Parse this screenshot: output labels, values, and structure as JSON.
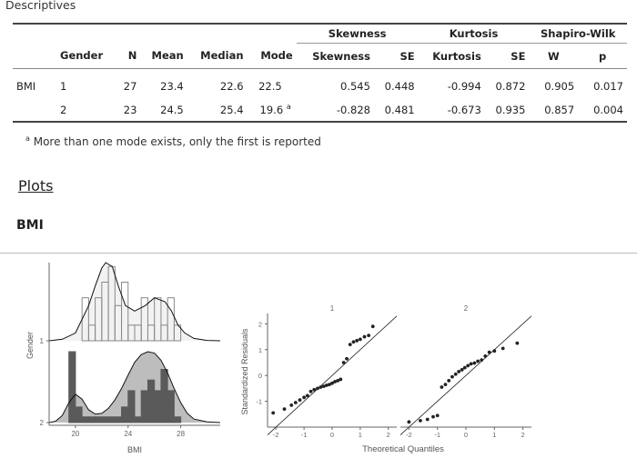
{
  "section_title": "Descriptives",
  "table": {
    "groups": [
      {
        "label": "Skewness"
      },
      {
        "label": "Kurtosis"
      },
      {
        "label": "Shapiro-Wilk"
      }
    ],
    "columns": [
      "Gender",
      "N",
      "Mean",
      "Median",
      "Mode",
      "Skewness",
      "SE",
      "Kurtosis",
      "SE",
      "W",
      "p"
    ],
    "variable": "BMI",
    "rows": [
      {
        "gender": "1",
        "n": "27",
        "mean": "23.4",
        "median": "22.6",
        "mode": "22.5",
        "skew": "0.545",
        "skew_se": "0.448",
        "kurt": "-0.994",
        "kurt_se": "0.872",
        "w": "0.905",
        "p": "0.017"
      },
      {
        "gender": "2",
        "n": "23",
        "mean": "24.5",
        "median": "25.4",
        "mode": "19.6",
        "mode_marker": "a",
        "skew": "-0.828",
        "skew_se": "0.481",
        "kurt": "-0.673",
        "kurt_se": "0.935",
        "w": "0.857",
        "p": "0.004"
      }
    ]
  },
  "footnote": {
    "marker": "a",
    "text": "More than one mode exists, only the first is reported"
  },
  "plots_title": "Plots",
  "variable_title": "BMI",
  "colors": {
    "dens_1": "#f2f2f2",
    "dens_2": "#bdbdbd",
    "hist_2": "#5a5a5a",
    "points": "#222222"
  },
  "chart_data": [
    {
      "type": "area",
      "xlabel": "BMI",
      "ylabel": "Gender",
      "xticks": [
        "20",
        "24",
        "28"
      ],
      "yticks": [
        "1",
        "2"
      ],
      "xlim": [
        18,
        31
      ],
      "series": [
        {
          "name": "1",
          "density_x": [
            19,
            20,
            21,
            21.5,
            22,
            22.3,
            22.8,
            23.3,
            23.8,
            24.5,
            25.3,
            26,
            26.8,
            27.3,
            27.8,
            28.3,
            29,
            30
          ],
          "density_y": [
            0.02,
            0.1,
            0.45,
            0.7,
            0.93,
            1.0,
            0.95,
            0.68,
            0.45,
            0.38,
            0.45,
            0.55,
            0.5,
            0.38,
            0.2,
            0.1,
            0.03,
            0.005
          ],
          "hist_bins": [
            20.5,
            21,
            21.5,
            22,
            22.5,
            23,
            23.5,
            24,
            24.5,
            25,
            25.5,
            26,
            26.5,
            27,
            27.5,
            28
          ],
          "hist_counts": [
            0.55,
            0.2,
            0.55,
            0.75,
            0.95,
            0.45,
            0.75,
            0.2,
            0.2,
            0.55,
            0.2,
            0.55,
            0.2,
            0.55,
            0.2
          ]
        },
        {
          "name": "2",
          "density_x": [
            18.5,
            19,
            19.5,
            20,
            20.5,
            21,
            21.5,
            22,
            22.5,
            23,
            23.5,
            24,
            24.5,
            25,
            25.5,
            26,
            26.5,
            27,
            27.5,
            28,
            28.5,
            29,
            30
          ],
          "density_y": [
            0.02,
            0.1,
            0.28,
            0.4,
            0.33,
            0.18,
            0.12,
            0.13,
            0.2,
            0.32,
            0.48,
            0.67,
            0.85,
            0.96,
            1.0,
            0.98,
            0.88,
            0.7,
            0.48,
            0.28,
            0.13,
            0.05,
            0.01
          ],
          "hist_bins": [
            19.5,
            20,
            20.5,
            21,
            21.5,
            22,
            22.5,
            23,
            23.5,
            24,
            24.5,
            25,
            25.5,
            26,
            26.5,
            27,
            27.5,
            28
          ],
          "hist_counts": [
            1.0,
            0.22,
            0.08,
            0.08,
            0.08,
            0.08,
            0.08,
            0.08,
            0.22,
            0.45,
            0.08,
            0.45,
            0.6,
            0.45,
            0.75,
            0.45,
            0.08
          ]
        }
      ]
    },
    {
      "type": "scatter",
      "title": "1",
      "xlabel": "Theoretical Quantiles",
      "ylabel": "Standardized Residuals",
      "xlim": [
        -2.3,
        2.3
      ],
      "ylim": [
        -2.0,
        2.4
      ],
      "xticks": [
        -2,
        -1,
        0,
        1,
        2
      ],
      "yticks": [
        -1,
        0,
        1,
        2
      ],
      "x": [
        -2.1,
        -1.7,
        -1.45,
        -1.3,
        -1.15,
        -1.0,
        -0.88,
        -0.76,
        -0.64,
        -0.52,
        -0.41,
        -0.3,
        -0.2,
        -0.1,
        0.0,
        0.1,
        0.2,
        0.3,
        0.41,
        0.52,
        0.64,
        0.76,
        0.88,
        1.0,
        1.15,
        1.3,
        1.45
      ],
      "y": [
        -1.45,
        -1.3,
        -1.15,
        -1.05,
        -0.95,
        -0.85,
        -0.78,
        -0.62,
        -0.55,
        -0.5,
        -0.45,
        -0.42,
        -0.38,
        -0.35,
        -0.3,
        -0.24,
        -0.2,
        -0.15,
        0.5,
        0.65,
        1.2,
        1.3,
        1.35,
        1.4,
        1.5,
        1.55,
        1.9
      ]
    },
    {
      "type": "scatter",
      "title": "2",
      "xlabel": "Theoretical Quantiles",
      "ylabel": "Standardized Residuals",
      "xlim": [
        -2.3,
        2.3
      ],
      "ylim": [
        -2.0,
        2.4
      ],
      "xticks": [
        -2,
        -1,
        0,
        1,
        2
      ],
      "yticks": [
        -1,
        0,
        1,
        2
      ],
      "x": [
        -2.0,
        -1.6,
        -1.35,
        -1.15,
        -1.0,
        -0.85,
        -0.72,
        -0.6,
        -0.48,
        -0.36,
        -0.25,
        -0.14,
        -0.04,
        0.07,
        0.18,
        0.3,
        0.42,
        0.55,
        0.68,
        0.82,
        1.0,
        1.3,
        1.8
      ],
      "y": [
        -1.8,
        -1.75,
        -1.7,
        -1.6,
        -1.55,
        -0.45,
        -0.35,
        -0.2,
        -0.05,
        0.05,
        0.15,
        0.22,
        0.3,
        0.38,
        0.45,
        0.48,
        0.55,
        0.6,
        0.75,
        0.9,
        0.95,
        1.05,
        1.25
      ]
    }
  ]
}
